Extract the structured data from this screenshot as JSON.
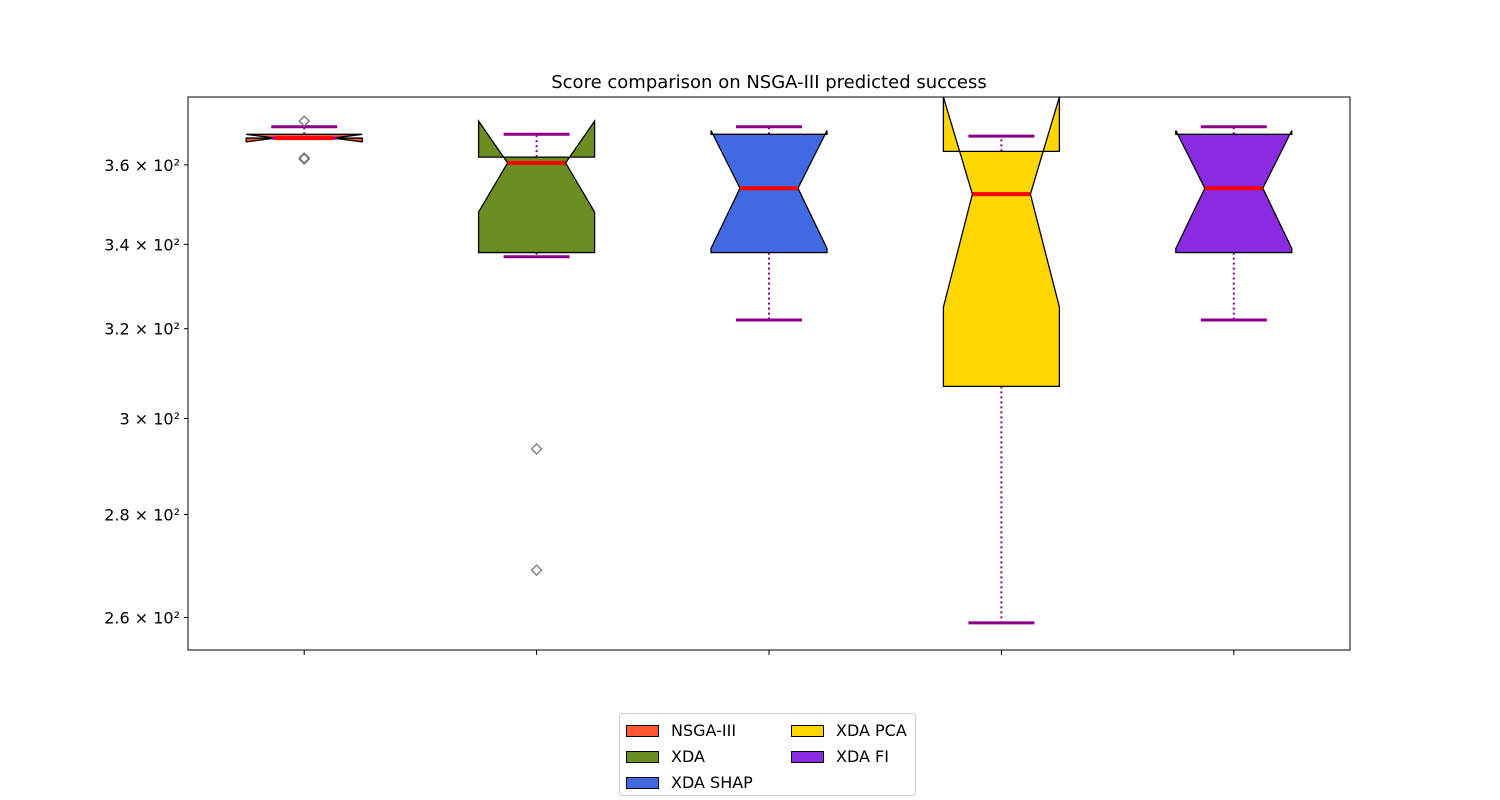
{
  "chart_data": {
    "type": "boxplot",
    "title": "Score comparison on NSGA-III predicted success",
    "xlabel": "",
    "ylabel": "",
    "y_scale": "log",
    "ylim": [
      254,
      378
    ],
    "y_ticks": [
      {
        "value": 260,
        "label": "2.6 × 10²"
      },
      {
        "value": 280,
        "label": "2.8 × 10²"
      },
      {
        "value": 300,
        "label": "3 × 10²"
      },
      {
        "value": 320,
        "label": "3.2 × 10²"
      },
      {
        "value": 340,
        "label": "3.4 × 10²"
      },
      {
        "value": 360,
        "label": "3.6 × 10²"
      }
    ],
    "x_tick_labels": [
      "",
      "",
      "",
      "",
      ""
    ],
    "notched": true,
    "median_color": "#ff0000",
    "whisker_color": "#8b008b",
    "flier_marker": "diamond",
    "legend_position": "lower center, outside",
    "series": [
      {
        "name": "NSGA-III",
        "color": "#ff5733",
        "min": 367,
        "q1": 367,
        "median": 367,
        "q3": 368,
        "max": 370,
        "notch_low": 366,
        "notch_high": 368,
        "outliers": [
          371.5,
          361.8,
          361.5
        ]
      },
      {
        "name": "XDA",
        "color": "#6b8e23",
        "min": 337,
        "q1": 338,
        "median": 360.5,
        "q3": 362,
        "max": 368,
        "notch_low": 348,
        "notch_high": 371.5,
        "outliers": [
          293.5,
          269
        ]
      },
      {
        "name": "XDA SHAP",
        "color": "#4169e1",
        "min": 322,
        "q1": 338,
        "median": 354,
        "q3": 368,
        "max": 370,
        "notch_low": 339,
        "notch_high": 369,
        "outliers": []
      },
      {
        "name": "XDA PCA",
        "color": "#ffd700",
        "min": 259,
        "q1": 307,
        "median": 352.5,
        "q3": 363.5,
        "max": 367.5,
        "notch_low": 325,
        "notch_high": 378,
        "outliers": []
      },
      {
        "name": "XDA FI",
        "color": "#8a2be2",
        "min": 322,
        "q1": 338,
        "median": 354,
        "q3": 368,
        "max": 370,
        "notch_low": 339,
        "notch_high": 369,
        "outliers": []
      }
    ]
  }
}
